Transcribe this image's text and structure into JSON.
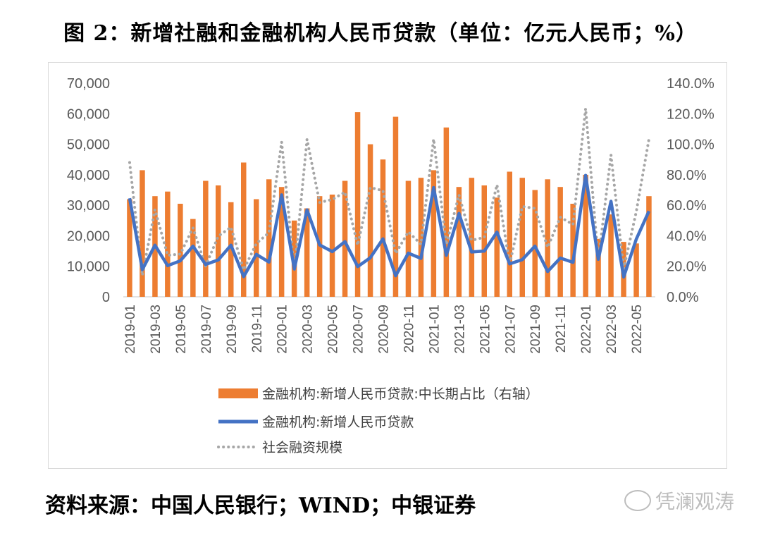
{
  "title": "图 2：新增社融和金融机构人民币贷款（单位：亿元人民币；%）",
  "source": "资料来源：中国人民银行；WIND；中银证券",
  "watermark": "凭澜观涛",
  "chart_data": {
    "type": "bar+line",
    "categories": [
      "2019-01",
      "2019-02",
      "2019-03",
      "2019-04",
      "2019-05",
      "2019-06",
      "2019-07",
      "2019-08",
      "2019-09",
      "2019-10",
      "2019-11",
      "2019-12",
      "2020-01",
      "2020-02",
      "2020-03",
      "2020-04",
      "2020-05",
      "2020-06",
      "2020-07",
      "2020-08",
      "2020-09",
      "2020-10",
      "2020-11",
      "2020-12",
      "2021-01",
      "2021-02",
      "2021-03",
      "2021-04",
      "2021-05",
      "2021-06",
      "2021-07",
      "2021-08",
      "2021-09",
      "2021-10",
      "2021-11",
      "2021-12",
      "2022-01",
      "2022-02",
      "2022-03",
      "2022-04",
      "2022-05",
      "2022-06"
    ],
    "x_tick_labels": [
      "2019-01",
      "2019-03",
      "2019-05",
      "2019-07",
      "2019-09",
      "2019-11",
      "2020-01",
      "2020-03",
      "2020-05",
      "2020-07",
      "2020-09",
      "2020-11",
      "2021-01",
      "2021-03",
      "2021-05",
      "2021-07",
      "2021-09",
      "2021-11",
      "2022-01",
      "2022-03",
      "2022-05"
    ],
    "left_axis": {
      "ylim": [
        0,
        70000
      ],
      "ticks": [
        "0",
        "10,000",
        "20,000",
        "30,000",
        "40,000",
        "50,000",
        "60,000",
        "70,000"
      ]
    },
    "right_axis": {
      "ylim": [
        0,
        140
      ],
      "ticks": [
        "0.0%",
        "20.0%",
        "40.0%",
        "60.0%",
        "80.0%",
        "100.0%",
        "120.0%",
        "140.0%"
      ]
    },
    "series": [
      {
        "name": "金融机构:新增人民币贷款:中长期占比（右轴）",
        "kind": "bar",
        "axis": "right",
        "color": "#ed7d31",
        "values": [
          64,
          83,
          66,
          69,
          61,
          51,
          76,
          73,
          62,
          88,
          64,
          77,
          72,
          50,
          58,
          66,
          67,
          76,
          121,
          100,
          90,
          118,
          76,
          78,
          83,
          111,
          72,
          78,
          73,
          65,
          82,
          78,
          70,
          77,
          72,
          61,
          80,
          38,
          54,
          36,
          35,
          66
        ]
      },
      {
        "name": "金融机构:新增人民币贷款",
        "kind": "line",
        "axis": "left",
        "color": "#4472c4",
        "values": [
          32300,
          8900,
          16900,
          10200,
          11800,
          16600,
          10600,
          12100,
          16900,
          6600,
          13900,
          11400,
          33400,
          9100,
          28500,
          17000,
          14800,
          18100,
          9900,
          12800,
          19000,
          6900,
          14300,
          12600,
          35800,
          13600,
          27300,
          14700,
          15000,
          21200,
          10800,
          12200,
          16600,
          8300,
          12700,
          11300,
          39800,
          12300,
          31300,
          6500,
          18900,
          28100
        ]
      },
      {
        "name": "社会融资规模",
        "kind": "dotted-line",
        "axis": "left",
        "color": "#a6a6a6",
        "values": [
          44000,
          7000,
          28600,
          13600,
          14000,
          22600,
          10100,
          19900,
          22800,
          8800,
          17500,
          21000,
          50700,
          8600,
          51600,
          30900,
          31900,
          34300,
          16900,
          35800,
          34800,
          14200,
          21300,
          17200,
          51700,
          17100,
          33400,
          18500,
          19500,
          36700,
          10600,
          29600,
          29000,
          16200,
          26100,
          23700,
          61700,
          11900,
          46500,
          9100,
          27900,
          51700
        ]
      }
    ]
  }
}
